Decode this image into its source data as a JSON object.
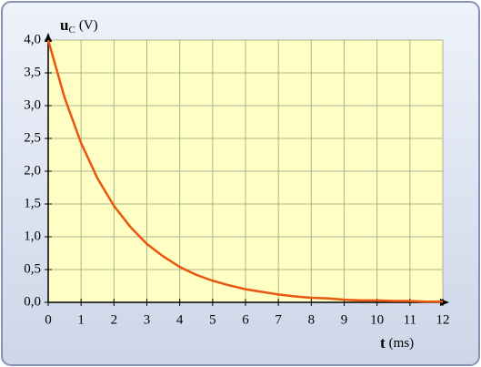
{
  "chart_data": {
    "type": "line",
    "ylabel": {
      "symbol": "u",
      "subscript": "C",
      "unit": "(V)"
    },
    "xlabel": {
      "symbol": "t",
      "unit": "(ms)"
    },
    "x": [
      0,
      0.5,
      1,
      1.5,
      2,
      2.5,
      3,
      3.5,
      4,
      4.5,
      5,
      5.5,
      6,
      6.5,
      7,
      7.5,
      8,
      8.5,
      9,
      9.5,
      10,
      10.5,
      11,
      11.5,
      12
    ],
    "series": [
      {
        "color": "#e8560f",
        "values": [
          4.0,
          3.12,
          2.43,
          1.89,
          1.47,
          1.15,
          0.89,
          0.7,
          0.54,
          0.42,
          0.33,
          0.26,
          0.2,
          0.16,
          0.12,
          0.09,
          0.07,
          0.06,
          0.04,
          0.03,
          0.03,
          0.02,
          0.02,
          0.01,
          0.01
        ]
      }
    ],
    "xlim": [
      0,
      12
    ],
    "xticks": [
      0,
      1,
      2,
      3,
      4,
      5,
      6,
      7,
      8,
      9,
      10,
      11,
      12
    ],
    "ylim": [
      0,
      4
    ],
    "yticks": [
      {
        "value": 0,
        "label": "0,0"
      },
      {
        "value": 0.5,
        "label": "0,5"
      },
      {
        "value": 1,
        "label": "1,0"
      },
      {
        "value": 1.5,
        "label": "1,5"
      },
      {
        "value": 2,
        "label": "2,0"
      },
      {
        "value": 2.5,
        "label": "2,5"
      },
      {
        "value": 3,
        "label": "3,0"
      },
      {
        "value": 3.5,
        "label": "3,5"
      },
      {
        "value": 4,
        "label": "4,0"
      }
    ],
    "grid": true
  }
}
